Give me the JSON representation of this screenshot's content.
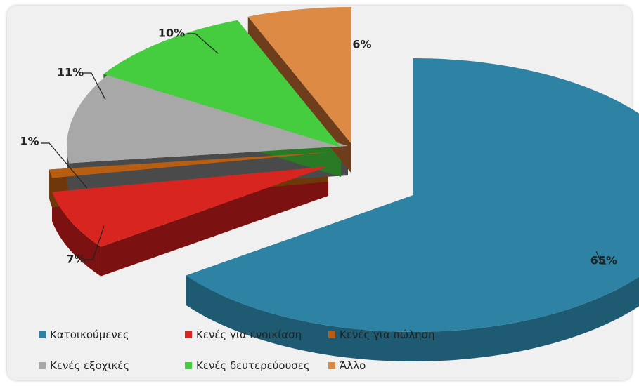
{
  "chart_data": {
    "type": "pie",
    "style": "3d-exploded",
    "categories": [
      "Κατοικούμενες",
      "Κενές για ενοικίαση",
      "Κενές για πώληση",
      "Κενές εξοχικές",
      "Κενές δευτερεύουσες",
      "Άλλο"
    ],
    "values": [
      65,
      7,
      1,
      11,
      10,
      6
    ],
    "data_labels": [
      "65%",
      "7%",
      "1%",
      "11%",
      "10%",
      "6%"
    ],
    "colors": [
      "#2e82a3",
      "#d92520",
      "#b85e12",
      "#a8a8a8",
      "#46cc3f",
      "#dd8a45"
    ],
    "side_colors": [
      "#1e5a72",
      "#7b1111",
      "#6e380a",
      "#4a4a4a",
      "#2a7a25",
      "#6e3e1c"
    ],
    "legend_position": "bottom",
    "grid": false
  }
}
